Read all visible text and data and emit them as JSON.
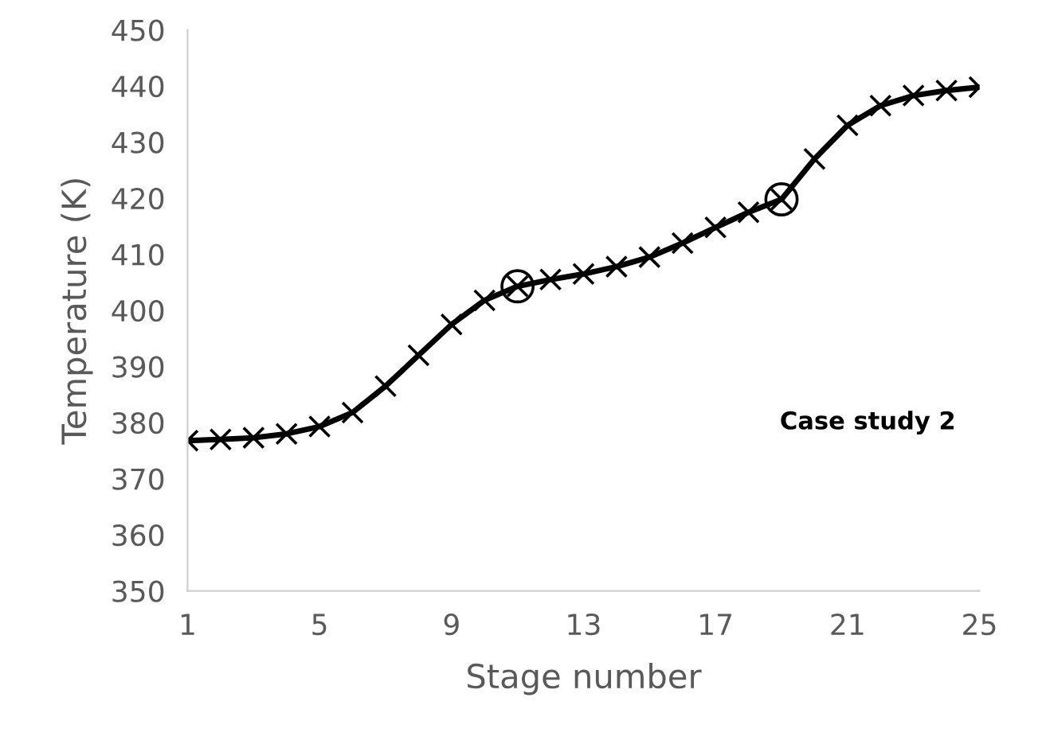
{
  "chart_data": {
    "type": "line",
    "xlabel": "Stage number",
    "ylabel": "Temperature (K)",
    "annotations": [
      "Case study 2"
    ],
    "xlim": [
      1,
      25
    ],
    "xticks": [
      1,
      5,
      9,
      13,
      17,
      21,
      25
    ],
    "ylim": [
      350,
      450
    ],
    "yticks": [
      350,
      360,
      370,
      380,
      390,
      400,
      410,
      420,
      430,
      440,
      450
    ],
    "grid": false,
    "legend": false,
    "series": [
      {
        "marker": "cross",
        "line_style": "solid",
        "color": "#000000",
        "x": [
          1,
          2,
          3,
          4,
          5,
          6,
          7,
          8,
          9,
          10,
          11,
          12,
          13,
          14,
          15,
          16,
          17,
          18,
          19,
          20,
          21,
          22,
          23,
          24,
          25
        ],
        "values": [
          376.8,
          377,
          377.3,
          378,
          379.3,
          381.8,
          386.5,
          392,
          397.5,
          401.8,
          404.3,
          405.5,
          406.5,
          407.8,
          409.5,
          412,
          414.8,
          417.5,
          419.8,
          427,
          433,
          436.5,
          438.3,
          439.2,
          439.8
        ]
      },
      {
        "type": "scatter",
        "marker": "circle",
        "color": "#000000",
        "x": [
          11,
          19
        ],
        "values": [
          404.3,
          419.8
        ]
      }
    ]
  }
}
